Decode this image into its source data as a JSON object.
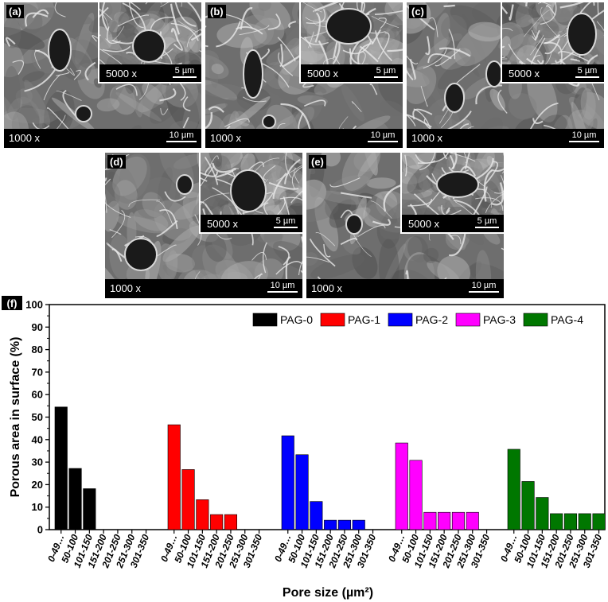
{
  "panels": [
    {
      "label": "(a)",
      "main_mag": "1000 x",
      "main_scale": "10 µm",
      "inset_mag": "5000 x",
      "inset_scale": "5 µm"
    },
    {
      "label": "(b)",
      "main_mag": "1000 x",
      "main_scale": "10 µm",
      "inset_mag": "5000 x",
      "inset_scale": "5 µm"
    },
    {
      "label": "(c)",
      "main_mag": "1000 x",
      "main_scale": "10 µm",
      "inset_mag": "5000 x",
      "inset_scale": "5 µm"
    },
    {
      "label": "(d)",
      "main_mag": "1000 x",
      "main_scale": "10 µm",
      "inset_mag": "5000 x",
      "inset_scale": "5 µm"
    },
    {
      "label": "(e)",
      "main_mag": "1000 x",
      "main_scale": "10 µm",
      "inset_mag": "5000 x",
      "inset_scale": "5 µm"
    }
  ],
  "chart_panel_label": "(f)",
  "chart_data": {
    "type": "bar",
    "title": "",
    "xlabel": "Pore size (µm²)",
    "ylabel": "Porous area in surface (%)",
    "ylim": [
      0,
      100
    ],
    "yticks": [
      0,
      10,
      20,
      30,
      40,
      50,
      60,
      70,
      80,
      90,
      100
    ],
    "categories": [
      "0-49…",
      "50-100",
      "101-150",
      "151-200",
      "201-250",
      "251-300",
      "301-350"
    ],
    "legend_position": "top-right",
    "series": [
      {
        "name": "PAG-0",
        "color": "#000000",
        "values": [
          54.5,
          27.2,
          18.2,
          0,
          0,
          0,
          0
        ]
      },
      {
        "name": "PAG-1",
        "color": "#ff0000",
        "values": [
          46.6,
          26.7,
          13.3,
          6.7,
          6.7,
          0,
          0
        ]
      },
      {
        "name": "PAG-2",
        "color": "#0000ff",
        "values": [
          41.7,
          33.3,
          12.5,
          4.2,
          4.2,
          4.2,
          0
        ]
      },
      {
        "name": "PAG-3",
        "color": "#ff00ff",
        "values": [
          38.5,
          30.8,
          7.7,
          7.7,
          7.7,
          7.7,
          0
        ]
      },
      {
        "name": "PAG-4",
        "color": "#007700",
        "values": [
          35.7,
          21.4,
          14.3,
          7.1,
          7.1,
          7.1,
          7.1
        ]
      }
    ]
  }
}
